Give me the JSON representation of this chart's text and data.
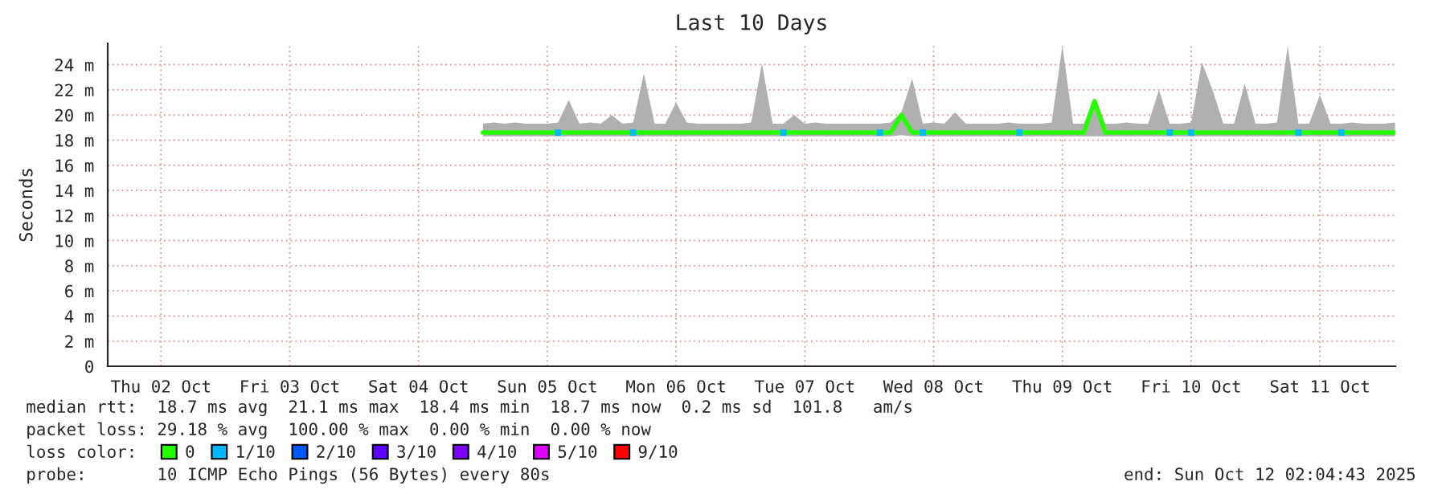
{
  "chart_data": {
    "type": "line",
    "title": "Last 10 Days",
    "ylabel": "Seconds",
    "x": [
      "2025-10-05T00:00",
      "2025-10-05T02:00",
      "2025-10-05T04:00",
      "2025-10-05T06:00",
      "2025-10-05T08:00",
      "2025-10-05T10:00",
      "2025-10-05T12:00",
      "2025-10-05T14:00",
      "2025-10-05T16:00",
      "2025-10-05T18:00",
      "2025-10-05T20:00",
      "2025-10-05T22:00",
      "2025-10-06T00:00",
      "2025-10-06T02:00",
      "2025-10-06T04:00",
      "2025-10-06T06:00",
      "2025-10-06T08:00",
      "2025-10-06T10:00",
      "2025-10-06T12:00",
      "2025-10-06T14:00",
      "2025-10-06T16:00",
      "2025-10-06T18:00",
      "2025-10-06T20:00",
      "2025-10-06T22:00",
      "2025-10-07T00:00",
      "2025-10-07T02:00",
      "2025-10-07T04:00",
      "2025-10-07T06:00",
      "2025-10-07T08:00",
      "2025-10-07T10:00",
      "2025-10-07T12:00",
      "2025-10-07T14:00",
      "2025-10-07T16:00",
      "2025-10-07T18:00",
      "2025-10-07T20:00",
      "2025-10-07T22:00",
      "2025-10-08T00:00",
      "2025-10-08T02:00",
      "2025-10-08T04:00",
      "2025-10-08T06:00",
      "2025-10-08T08:00",
      "2025-10-08T10:00",
      "2025-10-08T12:00",
      "2025-10-08T14:00",
      "2025-10-08T16:00",
      "2025-10-08T18:00",
      "2025-10-08T20:00",
      "2025-10-08T22:00",
      "2025-10-09T00:00",
      "2025-10-09T02:00",
      "2025-10-09T04:00",
      "2025-10-09T06:00",
      "2025-10-09T08:00",
      "2025-10-09T10:00",
      "2025-10-09T12:00",
      "2025-10-09T14:00",
      "2025-10-09T16:00",
      "2025-10-09T18:00",
      "2025-10-09T20:00",
      "2025-10-09T22:00",
      "2025-10-10T00:00",
      "2025-10-10T02:00",
      "2025-10-10T04:00",
      "2025-10-10T06:00",
      "2025-10-10T08:00",
      "2025-10-10T10:00",
      "2025-10-10T12:00",
      "2025-10-10T14:00",
      "2025-10-10T16:00",
      "2025-10-10T18:00",
      "2025-10-10T20:00",
      "2025-10-10T22:00",
      "2025-10-11T00:00",
      "2025-10-11T02:00",
      "2025-10-11T04:00",
      "2025-10-11T06:00",
      "2025-10-11T08:00",
      "2025-10-11T10:00",
      "2025-10-11T12:00",
      "2025-10-11T14:00",
      "2025-10-11T16:00",
      "2025-10-11T18:00",
      "2025-10-11T20:00",
      "2025-10-11T22:00",
      "2025-10-12T00:00",
      "2025-10-12T02:00"
    ],
    "series": [
      {
        "name": "0",
        "color": "#26ff00",
        "values": [
          18.6,
          18.6,
          18.6,
          18.6,
          18.6,
          18.6,
          18.6,
          18.6,
          18.6,
          18.6,
          18.6,
          18.6,
          18.6,
          18.6,
          18.6,
          18.6,
          18.6,
          18.6,
          18.6,
          18.6,
          18.6,
          18.6,
          18.6,
          18.6,
          18.6,
          18.6,
          18.6,
          18.6,
          18.6,
          18.6,
          18.6,
          18.6,
          18.6,
          18.6,
          18.6,
          18.6,
          18.6,
          18.6,
          18.6,
          20.0,
          18.6,
          18.6,
          18.6,
          18.6,
          18.6,
          18.6,
          18.6,
          18.6,
          18.6,
          18.6,
          18.6,
          18.6,
          18.6,
          18.6,
          18.6,
          18.6,
          18.6,
          21.1,
          18.6,
          18.6,
          18.6,
          18.6,
          18.6,
          18.6,
          18.6,
          18.6,
          18.6,
          18.6,
          18.6,
          18.6,
          18.6,
          18.6,
          18.6,
          18.6,
          18.6,
          18.6,
          18.6,
          18.6,
          18.6,
          18.6,
          18.6,
          18.6,
          18.6,
          18.6,
          18.6,
          18.6
        ],
        "lower": [
          18.3,
          18.3,
          18.3,
          18.3,
          18.3,
          18.3,
          18.3,
          18.3,
          18.3,
          18.3,
          18.3,
          18.3,
          18.3,
          18.3,
          18.3,
          18.3,
          18.3,
          18.3,
          18.3,
          18.3,
          18.3,
          18.3,
          18.3,
          18.3,
          18.3,
          18.3,
          18.3,
          18.3,
          18.3,
          18.3,
          18.3,
          18.3,
          18.3,
          18.3,
          18.3,
          18.3,
          18.3,
          18.3,
          18.3,
          18.4,
          18.3,
          18.3,
          18.3,
          18.3,
          18.3,
          18.3,
          18.3,
          18.3,
          18.3,
          18.3,
          18.3,
          18.3,
          18.3,
          18.3,
          18.3,
          18.3,
          18.3,
          18.3,
          18.3,
          18.3,
          18.3,
          18.3,
          18.3,
          18.3,
          18.3,
          18.3,
          18.3,
          18.3,
          18.3,
          18.3,
          18.3,
          18.3,
          18.3,
          18.3,
          18.3,
          18.3,
          18.3,
          18.3,
          18.3,
          18.3,
          18.3,
          18.3,
          18.3,
          18.3,
          18.3,
          18.3
        ],
        "upper": [
          19.3,
          19.4,
          19.3,
          19.4,
          19.3,
          19.3,
          19.3,
          19.4,
          21.2,
          19.3,
          19.4,
          19.3,
          20.0,
          19.3,
          19.4,
          23.3,
          19.3,
          19.3,
          21.0,
          19.4,
          19.3,
          19.3,
          19.3,
          19.3,
          19.3,
          19.4,
          24.1,
          19.3,
          19.3,
          20.0,
          19.3,
          19.4,
          19.3,
          19.3,
          19.3,
          19.3,
          19.3,
          19.3,
          19.4,
          20.2,
          22.9,
          19.3,
          19.4,
          19.3,
          20.2,
          19.3,
          19.3,
          19.3,
          19.3,
          19.4,
          19.3,
          19.3,
          19.3,
          19.4,
          25.5,
          19.3,
          19.3,
          21.3,
          19.3,
          19.3,
          19.4,
          19.3,
          19.3,
          22.0,
          19.3,
          19.3,
          19.4,
          24.2,
          22.0,
          19.3,
          19.3,
          22.5,
          19.3,
          19.3,
          19.4,
          25.5,
          19.3,
          19.3,
          21.6,
          19.3,
          19.3,
          19.4,
          19.3,
          19.3,
          19.3,
          19.4
        ]
      },
      {
        "name": "1/10",
        "type": "scatter",
        "color": "#00b8ff",
        "values": [
          null,
          null,
          null,
          null,
          null,
          null,
          null,
          18.6,
          null,
          null,
          null,
          null,
          null,
          null,
          18.6,
          null,
          null,
          null,
          null,
          null,
          null,
          null,
          null,
          null,
          null,
          null,
          null,
          null,
          18.6,
          null,
          null,
          null,
          null,
          null,
          null,
          null,
          null,
          18.6,
          null,
          null,
          null,
          18.6,
          null,
          null,
          null,
          null,
          null,
          null,
          null,
          null,
          18.6,
          null,
          null,
          null,
          null,
          null,
          null,
          null,
          null,
          null,
          null,
          null,
          null,
          null,
          18.6,
          null,
          18.6,
          null,
          null,
          null,
          null,
          null,
          null,
          null,
          null,
          null,
          18.6,
          null,
          null,
          null,
          18.6,
          null,
          null,
          null,
          null,
          null
        ]
      },
      {
        "name": "2/10",
        "type": "scatter",
        "color": "#0059ff",
        "values": [
          null,
          null,
          null,
          null,
          null,
          null,
          null,
          null,
          null,
          null,
          null,
          null,
          null,
          null,
          null,
          null,
          null,
          null,
          null,
          null,
          null,
          null,
          null,
          null,
          null,
          null,
          null,
          null,
          null,
          null,
          null,
          null,
          null,
          null,
          null,
          null,
          null,
          null,
          null,
          null,
          null,
          null,
          null,
          null,
          null,
          null,
          null,
          null,
          null,
          null,
          null,
          null,
          null,
          null,
          null,
          null,
          null,
          null,
          null,
          null,
          null,
          null,
          null,
          null,
          null,
          null,
          null,
          null,
          null,
          null,
          null,
          null,
          null,
          null,
          null,
          null,
          null,
          null,
          null,
          null,
          null,
          null,
          null,
          null,
          null,
          null
        ]
      },
      {
        "name": "3/10",
        "type": "scatter",
        "color": "#5e00ff",
        "values": [
          null,
          null,
          null,
          null,
          null,
          null,
          null,
          null,
          null,
          null,
          null,
          null,
          null,
          null,
          null,
          null,
          null,
          null,
          null,
          null,
          null,
          null,
          null,
          null,
          null,
          null,
          null,
          null,
          null,
          null,
          null,
          null,
          null,
          null,
          null,
          null,
          null,
          null,
          null,
          null,
          null,
          null,
          null,
          null,
          null,
          null,
          null,
          null,
          null,
          null,
          null,
          null,
          null,
          null,
          null,
          null,
          null,
          null,
          null,
          null,
          null,
          null,
          null,
          null,
          null,
          null,
          null,
          null,
          null,
          null,
          null,
          null,
          null,
          null,
          null,
          null,
          null,
          null,
          null,
          null,
          null,
          null,
          null,
          null,
          null,
          null
        ]
      },
      {
        "name": "4/10",
        "type": "scatter",
        "color": "#7e00ff",
        "values": [
          null,
          null,
          null,
          null,
          null,
          null,
          null,
          null,
          null,
          null,
          null,
          null,
          null,
          null,
          null,
          null,
          null,
          null,
          null,
          null,
          null,
          null,
          null,
          null,
          null,
          null,
          null,
          null,
          null,
          null,
          null,
          null,
          null,
          null,
          null,
          null,
          null,
          null,
          null,
          null,
          null,
          null,
          null,
          null,
          null,
          null,
          null,
          null,
          null,
          null,
          null,
          null,
          null,
          null,
          null,
          null,
          null,
          null,
          null,
          null,
          null,
          null,
          null,
          null,
          null,
          null,
          null,
          null,
          null,
          null,
          null,
          null,
          null,
          null,
          null,
          null,
          null,
          null,
          null,
          null,
          null,
          null,
          null,
          null,
          null,
          null
        ]
      },
      {
        "name": "5/10",
        "type": "scatter",
        "color": "#dd00ff",
        "values": [
          null,
          null,
          null,
          null,
          null,
          null,
          null,
          null,
          null,
          null,
          null,
          null,
          null,
          null,
          null,
          null,
          null,
          null,
          null,
          null,
          null,
          null,
          null,
          null,
          null,
          null,
          null,
          null,
          null,
          null,
          null,
          null,
          null,
          null,
          null,
          null,
          null,
          null,
          null,
          null,
          null,
          null,
          null,
          null,
          null,
          null,
          null,
          null,
          null,
          null,
          null,
          null,
          null,
          null,
          null,
          null,
          null,
          null,
          null,
          null,
          null,
          null,
          null,
          null,
          null,
          null,
          null,
          null,
          null,
          null,
          null,
          null,
          null,
          null,
          null,
          null,
          null,
          null,
          null,
          null,
          null,
          null,
          null,
          null,
          null,
          null
        ]
      },
      {
        "name": "9/10",
        "type": "scatter",
        "color": "#ff0000",
        "values": [
          null,
          null,
          null,
          null,
          null,
          null,
          null,
          null,
          null,
          null,
          null,
          null,
          null,
          null,
          null,
          null,
          null,
          null,
          null,
          null,
          null,
          null,
          null,
          null,
          null,
          null,
          null,
          null,
          null,
          null,
          null,
          null,
          null,
          null,
          null,
          null,
          null,
          null,
          null,
          null,
          null,
          null,
          null,
          null,
          null,
          null,
          null,
          null,
          null,
          null,
          null,
          null,
          null,
          null,
          null,
          null,
          null,
          null,
          null,
          null,
          null,
          null,
          null,
          null,
          null,
          null,
          null,
          null,
          null,
          null,
          null,
          null,
          null,
          null,
          null,
          null,
          null,
          null,
          null,
          null,
          null,
          null,
          null,
          null,
          null,
          null
        ]
      }
    ],
    "legend_title": "loss color:",
    "legend": "bottom",
    "xlim": [
      "2025-10-02T02:04",
      "2025-10-12T02:04"
    ],
    "xticks": [
      {
        "value": "2025-10-02T12:00",
        "label": "Thu 02 Oct"
      },
      {
        "value": "2025-10-03T12:00",
        "label": "Fri 03 Oct"
      },
      {
        "value": "2025-10-04T12:00",
        "label": "Sat 04 Oct"
      },
      {
        "value": "2025-10-05T12:00",
        "label": "Sun 05 Oct"
      },
      {
        "value": "2025-10-06T12:00",
        "label": "Mon 06 Oct"
      },
      {
        "value": "2025-10-07T12:00",
        "label": "Tue 07 Oct"
      },
      {
        "value": "2025-10-08T12:00",
        "label": "Wed 08 Oct"
      },
      {
        "value": "2025-10-09T12:00",
        "label": "Thu 09 Oct"
      },
      {
        "value": "2025-10-10T12:00",
        "label": "Fri 10 Oct"
      },
      {
        "value": "2025-10-11T12:00",
        "label": "Sat 11 Oct"
      }
    ],
    "ylim": [
      0,
      25.7
    ],
    "yticks": [
      {
        "value": 0,
        "label": "0"
      },
      {
        "value": 2,
        "label": "2 m"
      },
      {
        "value": 4,
        "label": "4 m"
      },
      {
        "value": 6,
        "label": "6 m"
      },
      {
        "value": 8,
        "label": "8 m"
      },
      {
        "value": 10,
        "label": "10 m"
      },
      {
        "value": 12,
        "label": "12 m"
      },
      {
        "value": 14,
        "label": "14 m"
      },
      {
        "value": 16,
        "label": "16 m"
      },
      {
        "value": 18,
        "label": "18 m"
      },
      {
        "value": 20,
        "label": "20 m"
      },
      {
        "value": 22,
        "label": "22 m"
      },
      {
        "value": 24,
        "label": "24 m"
      }
    ],
    "grid": true,
    "annotations": [
      "median rtt:  18.7 ms avg  21.1 ms max  18.4 ms min  18.7 ms now  0.2 ms sd  101.8   am/s",
      "packet loss: 29.18 % avg  100.00 % max  0.00 % min  0.00 % now",
      "probe:       10 ICMP Echo Pings (56 Bytes) every 80s",
      "end: Sun Oct 12 02:04:43 2025"
    ]
  }
}
